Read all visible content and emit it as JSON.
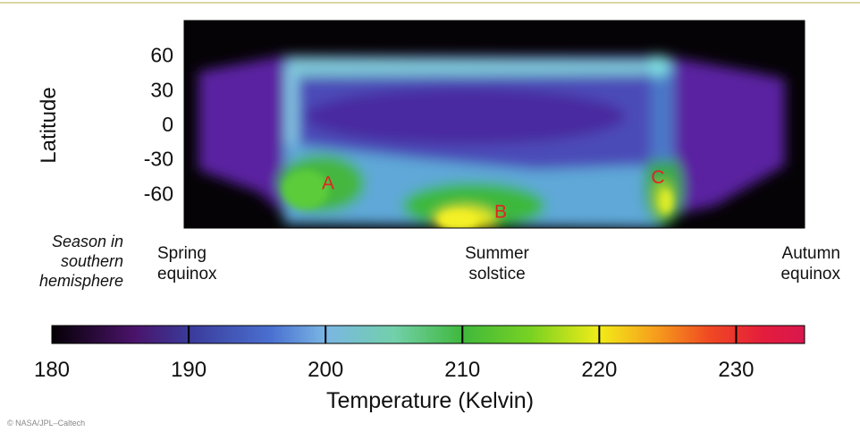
{
  "chart_data": {
    "type": "heatmap",
    "title": "",
    "ylabel": "Latitude",
    "yticks": [
      60,
      30,
      0,
      -30,
      -60
    ],
    "ylim": [
      -90,
      90
    ],
    "season_label": "Season in southern hemisphere",
    "season_label_lines": [
      "Season in",
      "southern",
      "hemisphere"
    ],
    "season_markers": [
      {
        "label_lines": [
          "Spring",
          "equinox"
        ]
      },
      {
        "label_lines": [
          "Summer",
          "solstice"
        ]
      },
      {
        "label_lines": [
          "Autumn",
          "equinox"
        ]
      }
    ],
    "regions": [
      {
        "label": "A",
        "latitude": -50
      },
      {
        "label": "B",
        "latitude": -75
      },
      {
        "label": "C",
        "latitude": -45
      }
    ],
    "region_label_color": "#e32222",
    "colorbar": {
      "title": "Temperature (Kelvin)",
      "range": [
        180,
        235
      ],
      "ticks": [
        180,
        190,
        200,
        210,
        220,
        230
      ],
      "stops": [
        {
          "value": 180,
          "color": "#050005"
        },
        {
          "value": 186,
          "color": "#4a136a"
        },
        {
          "value": 190,
          "color": "#3a3a9a"
        },
        {
          "value": 196,
          "color": "#4a70d0"
        },
        {
          "value": 200,
          "color": "#7ab6e4"
        },
        {
          "value": 205,
          "color": "#72d0aa"
        },
        {
          "value": 210,
          "color": "#40b83c"
        },
        {
          "value": 215,
          "color": "#78d222"
        },
        {
          "value": 220,
          "color": "#f2ec18"
        },
        {
          "value": 224,
          "color": "#f6a01c"
        },
        {
          "value": 228,
          "color": "#f04a22"
        },
        {
          "value": 232,
          "color": "#e41c3c"
        },
        {
          "value": 235,
          "color": "#d8184e"
        }
      ]
    }
  },
  "credit": "© NASA/JPL–Caltech"
}
